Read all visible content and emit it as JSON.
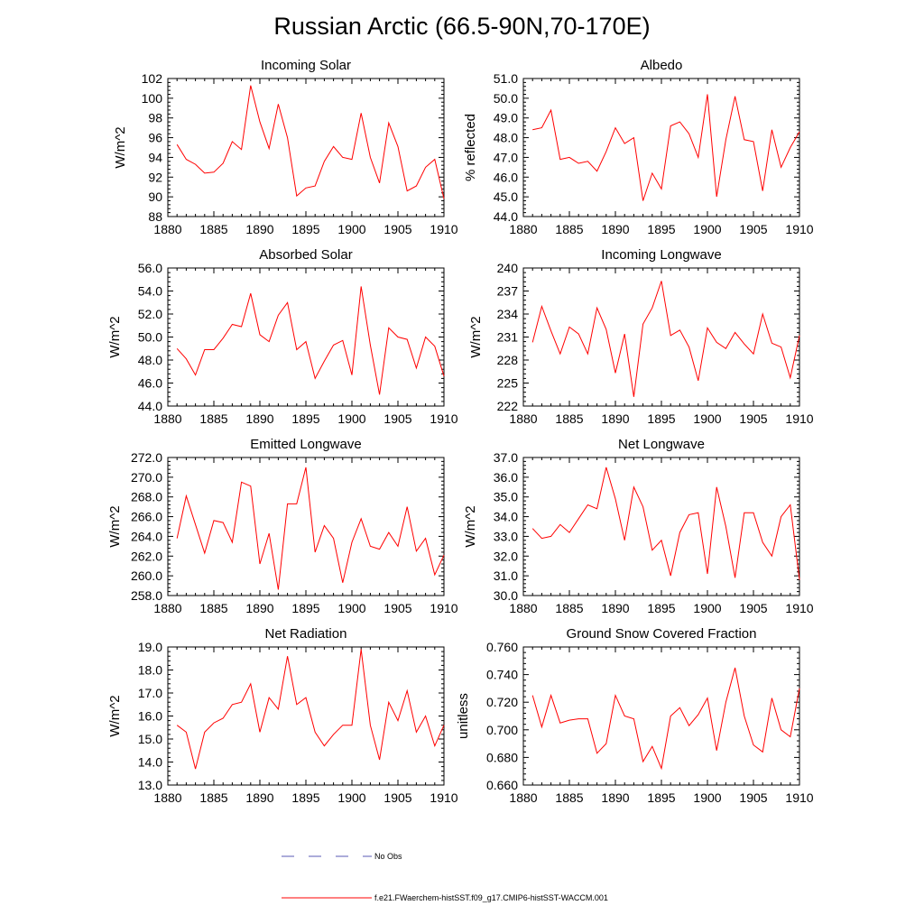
{
  "page": {
    "title": "Russian Arctic (66.5-90N,70-170E)"
  },
  "legend": {
    "items": [
      {
        "label": "No Obs",
        "color": "#5a5ab4",
        "dash": true
      },
      {
        "label": "f.e21.FWaerchem-histSST.f09_g17.CMIP6-histSST-WACCM.001",
        "color": "#ff0000",
        "dash": false
      }
    ]
  },
  "chart_data": [
    {
      "type": "line",
      "title": "Incoming Solar",
      "ylabel": "W/m^2",
      "xlim": [
        1880,
        1910
      ],
      "xticks": [
        1880,
        1885,
        1890,
        1895,
        1900,
        1905,
        1910
      ],
      "ylim": [
        88,
        102
      ],
      "yticks": [
        88,
        90,
        92,
        94,
        96,
        98,
        100,
        102
      ],
      "ydec": 0,
      "x": [
        1881,
        1882,
        1883,
        1884,
        1885,
        1886,
        1887,
        1888,
        1889,
        1890,
        1891,
        1892,
        1893,
        1894,
        1895,
        1896,
        1897,
        1898,
        1899,
        1900,
        1901,
        1902,
        1903,
        1904,
        1905,
        1906,
        1907,
        1908,
        1909,
        1910
      ],
      "series": [
        {
          "values": [
            95.3,
            93.8,
            93.3,
            92.4,
            92.5,
            93.4,
            95.6,
            94.8,
            101.3,
            97.6,
            94.9,
            99.4,
            96.0,
            90.1,
            90.9,
            91.1,
            93.6,
            95.1,
            94.0,
            93.8,
            98.5,
            94.0,
            91.4,
            97.5,
            95.1,
            90.6,
            91.1,
            93.0,
            93.8,
            89.8
          ]
        }
      ]
    },
    {
      "type": "line",
      "title": "Albedo",
      "ylabel": "% reflected",
      "xlim": [
        1880,
        1910
      ],
      "xticks": [
        1880,
        1885,
        1890,
        1895,
        1900,
        1905,
        1910
      ],
      "ylim": [
        44,
        51
      ],
      "yticks": [
        44,
        45,
        46,
        47,
        48,
        49,
        50,
        51
      ],
      "ydec": 1,
      "x": [
        1881,
        1882,
        1883,
        1884,
        1885,
        1886,
        1887,
        1888,
        1889,
        1890,
        1891,
        1892,
        1893,
        1894,
        1895,
        1896,
        1897,
        1898,
        1899,
        1900,
        1901,
        1902,
        1903,
        1904,
        1905,
        1906,
        1907,
        1908,
        1909,
        1910
      ],
      "series": [
        {
          "values": [
            48.4,
            48.5,
            49.4,
            46.9,
            47.0,
            46.7,
            46.8,
            46.3,
            47.3,
            48.5,
            47.7,
            48.0,
            44.8,
            46.2,
            45.4,
            48.6,
            48.8,
            48.2,
            47.0,
            50.2,
            45.0,
            47.9,
            50.1,
            47.9,
            47.8,
            45.3,
            48.4,
            46.5,
            47.5,
            48.3
          ]
        }
      ]
    },
    {
      "type": "line",
      "title": "Absorbed Solar",
      "ylabel": "W/m^2",
      "xlim": [
        1880,
        1910
      ],
      "xticks": [
        1880,
        1885,
        1890,
        1895,
        1900,
        1905,
        1910
      ],
      "ylim": [
        44,
        56
      ],
      "yticks": [
        44,
        46,
        48,
        50,
        52,
        54,
        56
      ],
      "ydec": 1,
      "x": [
        1881,
        1882,
        1883,
        1884,
        1885,
        1886,
        1887,
        1888,
        1889,
        1890,
        1891,
        1892,
        1893,
        1894,
        1895,
        1896,
        1897,
        1898,
        1899,
        1900,
        1901,
        1902,
        1903,
        1904,
        1905,
        1906,
        1907,
        1908,
        1909,
        1910
      ],
      "series": [
        {
          "values": [
            49.0,
            48.1,
            46.7,
            48.9,
            48.9,
            49.9,
            51.1,
            50.9,
            53.8,
            50.2,
            49.6,
            51.9,
            53.0,
            48.9,
            49.6,
            46.4,
            47.9,
            49.3,
            49.7,
            46.7,
            54.4,
            49.3,
            45.0,
            50.8,
            50.0,
            49.8,
            47.3,
            50.0,
            49.2,
            46.6
          ]
        }
      ]
    },
    {
      "type": "line",
      "title": "Incoming Longwave",
      "ylabel": "W/m^2",
      "xlim": [
        1880,
        1910
      ],
      "xticks": [
        1880,
        1885,
        1890,
        1895,
        1900,
        1905,
        1910
      ],
      "ylim": [
        222,
        240
      ],
      "yticks": [
        222,
        225,
        228,
        231,
        234,
        237,
        240
      ],
      "ydec": 0,
      "x": [
        1881,
        1882,
        1883,
        1884,
        1885,
        1886,
        1887,
        1888,
        1889,
        1890,
        1891,
        1892,
        1893,
        1894,
        1895,
        1896,
        1897,
        1898,
        1899,
        1900,
        1901,
        1902,
        1903,
        1904,
        1905,
        1906,
        1907,
        1908,
        1909,
        1910
      ],
      "series": [
        {
          "values": [
            230.3,
            235.0,
            231.8,
            228.8,
            232.3,
            231.4,
            228.8,
            234.8,
            232.0,
            226.3,
            231.4,
            223.2,
            232.7,
            234.8,
            238.3,
            231.2,
            231.9,
            229.7,
            225.3,
            232.2,
            230.3,
            229.5,
            231.6,
            230.1,
            228.8,
            234.0,
            230.2,
            229.7,
            225.7,
            231.2
          ]
        }
      ]
    },
    {
      "type": "line",
      "title": "Emitted Longwave",
      "ylabel": "W/m^2",
      "xlim": [
        1880,
        1910
      ],
      "xticks": [
        1880,
        1885,
        1890,
        1895,
        1900,
        1905,
        1910
      ],
      "ylim": [
        258,
        272
      ],
      "yticks": [
        258,
        260,
        262,
        264,
        266,
        268,
        270,
        272
      ],
      "ydec": 1,
      "x": [
        1881,
        1882,
        1883,
        1884,
        1885,
        1886,
        1887,
        1888,
        1889,
        1890,
        1891,
        1892,
        1893,
        1894,
        1895,
        1896,
        1897,
        1898,
        1899,
        1900,
        1901,
        1902,
        1903,
        1904,
        1905,
        1906,
        1907,
        1908,
        1909,
        1910
      ],
      "series": [
        {
          "values": [
            263.8,
            268.1,
            265.2,
            262.3,
            265.6,
            265.4,
            263.4,
            269.5,
            269.1,
            261.2,
            264.3,
            258.6,
            267.3,
            267.3,
            271.0,
            262.4,
            265.1,
            263.8,
            259.3,
            263.4,
            265.8,
            263.0,
            262.7,
            264.4,
            263.0,
            267.0,
            262.5,
            263.8,
            260.1,
            262.1
          ]
        }
      ]
    },
    {
      "type": "line",
      "title": "Net Longwave",
      "ylabel": "W/m^2",
      "xlim": [
        1880,
        1910
      ],
      "xticks": [
        1880,
        1885,
        1890,
        1895,
        1900,
        1905,
        1910
      ],
      "ylim": [
        30,
        37
      ],
      "yticks": [
        30,
        31,
        32,
        33,
        34,
        35,
        36,
        37
      ],
      "ydec": 1,
      "x": [
        1881,
        1882,
        1883,
        1884,
        1885,
        1886,
        1887,
        1888,
        1889,
        1890,
        1891,
        1892,
        1893,
        1894,
        1895,
        1896,
        1897,
        1898,
        1899,
        1900,
        1901,
        1902,
        1903,
        1904,
        1905,
        1906,
        1907,
        1908,
        1909,
        1910
      ],
      "series": [
        {
          "values": [
            33.4,
            32.9,
            33.0,
            33.6,
            33.2,
            33.9,
            34.6,
            34.4,
            36.5,
            34.9,
            32.8,
            35.5,
            34.5,
            32.3,
            32.8,
            31.0,
            33.2,
            34.1,
            34.2,
            31.1,
            35.5,
            33.5,
            30.9,
            34.2,
            34.2,
            32.7,
            32.0,
            34.0,
            34.6,
            30.8
          ]
        }
      ]
    },
    {
      "type": "line",
      "title": "Net Radiation",
      "ylabel": "W/m^2",
      "xlim": [
        1880,
        1910
      ],
      "xticks": [
        1880,
        1885,
        1890,
        1895,
        1900,
        1905,
        1910
      ],
      "ylim": [
        13,
        19
      ],
      "yticks": [
        13,
        14,
        15,
        16,
        17,
        18,
        19
      ],
      "ydec": 1,
      "x": [
        1881,
        1882,
        1883,
        1884,
        1885,
        1886,
        1887,
        1888,
        1889,
        1890,
        1891,
        1892,
        1893,
        1894,
        1895,
        1896,
        1897,
        1898,
        1899,
        1900,
        1901,
        1902,
        1903,
        1904,
        1905,
        1906,
        1907,
        1908,
        1909,
        1910
      ],
      "series": [
        {
          "values": [
            15.6,
            15.3,
            13.7,
            15.3,
            15.7,
            15.9,
            16.5,
            16.6,
            17.4,
            15.3,
            16.8,
            16.3,
            18.6,
            16.5,
            16.8,
            15.3,
            14.7,
            15.2,
            15.6,
            15.6,
            18.9,
            15.6,
            14.1,
            16.6,
            15.8,
            17.1,
            15.3,
            16.0,
            14.7,
            15.6
          ]
        }
      ]
    },
    {
      "type": "line",
      "title": "Ground Snow Covered Fraction",
      "ylabel": "unitless",
      "xlim": [
        1880,
        1910
      ],
      "xticks": [
        1880,
        1885,
        1890,
        1895,
        1900,
        1905,
        1910
      ],
      "ylim": [
        0.66,
        0.76
      ],
      "yticks": [
        0.66,
        0.68,
        0.7,
        0.72,
        0.74,
        0.76
      ],
      "ydec": 3,
      "x": [
        1881,
        1882,
        1883,
        1884,
        1885,
        1886,
        1887,
        1888,
        1889,
        1890,
        1891,
        1892,
        1893,
        1894,
        1895,
        1896,
        1897,
        1898,
        1899,
        1900,
        1901,
        1902,
        1903,
        1904,
        1905,
        1906,
        1907,
        1908,
        1909,
        1910
      ],
      "series": [
        {
          "values": [
            0.725,
            0.702,
            0.725,
            0.705,
            0.707,
            0.708,
            0.708,
            0.683,
            0.69,
            0.725,
            0.71,
            0.708,
            0.677,
            0.688,
            0.672,
            0.71,
            0.716,
            0.703,
            0.711,
            0.723,
            0.685,
            0.72,
            0.745,
            0.71,
            0.689,
            0.684,
            0.723,
            0.7,
            0.695,
            0.73
          ]
        }
      ]
    }
  ]
}
